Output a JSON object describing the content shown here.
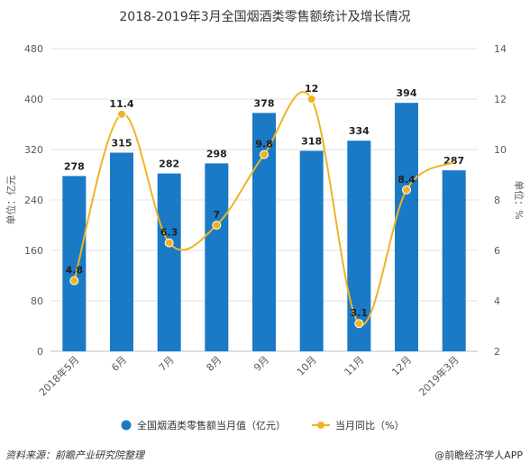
{
  "chart_data": {
    "type": "bar+line",
    "title": "2018-2019年3月全国烟酒类零售额统计及增长情况",
    "categories": [
      "2018年5月",
      "6月",
      "7月",
      "8月",
      "9月",
      "10月",
      "11月",
      "12月",
      "2019年3月"
    ],
    "series": [
      {
        "name": "全国烟酒类零售额当月值（亿元）",
        "type": "bar",
        "axis": "left",
        "color": "#1a7ac6",
        "values": [
          278,
          315,
          282,
          298,
          378,
          318,
          334,
          394,
          287
        ],
        "labels": [
          "278",
          "315",
          "282",
          "298",
          "378",
          "318",
          "334",
          "394",
          "287"
        ]
      },
      {
        "name": "当月同比（%）",
        "type": "line",
        "axis": "right",
        "color": "#f0b323",
        "values": [
          4.8,
          11.4,
          6.3,
          7,
          9.8,
          12,
          3.1,
          8.4,
          9.5
        ],
        "labels": [
          "4.8",
          "11.4",
          "6.3",
          "7",
          "9.8",
          "12",
          "3.1",
          "8.4",
          ""
        ]
      }
    ],
    "ylabel_left": "单位：亿元",
    "ylabel_right": "单位：%",
    "ylim_left": [
      0,
      480
    ],
    "yticks_left": [
      "0",
      "80",
      "160",
      "240",
      "320",
      "400",
      "480"
    ],
    "ylim_right": [
      2,
      14
    ],
    "yticks_right": [
      "2",
      "4",
      "6",
      "8",
      "10",
      "12",
      "14"
    ],
    "grid": true,
    "legend_position": "bottom"
  },
  "footer": {
    "source": "资料来源：前瞻产业研究院整理",
    "brand": "@前瞻经济学人APP"
  }
}
